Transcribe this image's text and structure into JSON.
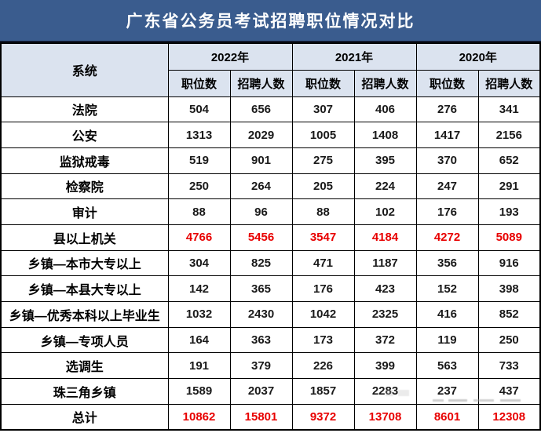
{
  "title": "广东省公务员考试招聘职位情况对比",
  "colors": {
    "title_bar_bg": "#3a5c8e",
    "title_text": "#ffffff",
    "header_bg": "#dbe3ef",
    "grid": "#000000",
    "highlight_red": "#e80000",
    "body_text": "#1a1a1a"
  },
  "header": {
    "system_label": "系统",
    "years": [
      "2022年",
      "2021年",
      "2020年"
    ],
    "sub_columns": [
      "职位数",
      "招聘人数"
    ]
  },
  "chart_data": {
    "type": "table",
    "title": "广东省公务员考试招聘职位情况对比",
    "columns": [
      "系统",
      "2022年 职位数",
      "2022年 招聘人数",
      "2021年 职位数",
      "2021年 招聘人数",
      "2020年 职位数",
      "2020年 招聘人数"
    ],
    "rows": [
      {
        "label": "法院",
        "values": [
          "504",
          "656",
          "307",
          "406",
          "276",
          "341"
        ],
        "highlight": false
      },
      {
        "label": "公安",
        "values": [
          "1313",
          "2029",
          "1005",
          "1408",
          "1417",
          "2156"
        ],
        "highlight": false
      },
      {
        "label": "监狱戒毒",
        "values": [
          "519",
          "901",
          "275",
          "395",
          "370",
          "652"
        ],
        "highlight": false
      },
      {
        "label": "检察院",
        "values": [
          "250",
          "264",
          "205",
          "224",
          "247",
          "291"
        ],
        "highlight": false
      },
      {
        "label": "审计",
        "values": [
          "88",
          "96",
          "88",
          "102",
          "176",
          "193"
        ],
        "highlight": false
      },
      {
        "label": "县以上机关",
        "values": [
          "4766",
          "5456",
          "3547",
          "4184",
          "4272",
          "5089"
        ],
        "highlight": true
      },
      {
        "label": "乡镇—本市大专以上",
        "values": [
          "304",
          "825",
          "471",
          "1187",
          "356",
          "916"
        ],
        "highlight": false
      },
      {
        "label": "乡镇—本县大专以上",
        "values": [
          "142",
          "365",
          "176",
          "423",
          "152",
          "398"
        ],
        "highlight": false
      },
      {
        "label": "乡镇—优秀本科以上毕业生",
        "values": [
          "1032",
          "2430",
          "1042",
          "2325",
          "416",
          "852"
        ],
        "highlight": false
      },
      {
        "label": "乡镇—专项人员",
        "values": [
          "164",
          "363",
          "173",
          "372",
          "119",
          "250"
        ],
        "highlight": false
      },
      {
        "label": "选调生",
        "values": [
          "191",
          "379",
          "226",
          "399",
          "563",
          "733"
        ],
        "highlight": false
      },
      {
        "label": "珠三角乡镇",
        "values": [
          "1589",
          "2037",
          "1857",
          "2283",
          "237",
          "437"
        ],
        "highlight": false
      },
      {
        "label": "总计",
        "values": [
          "10862",
          "15801",
          "9372",
          "13708",
          "8601",
          "12308"
        ],
        "highlight": true
      }
    ]
  }
}
